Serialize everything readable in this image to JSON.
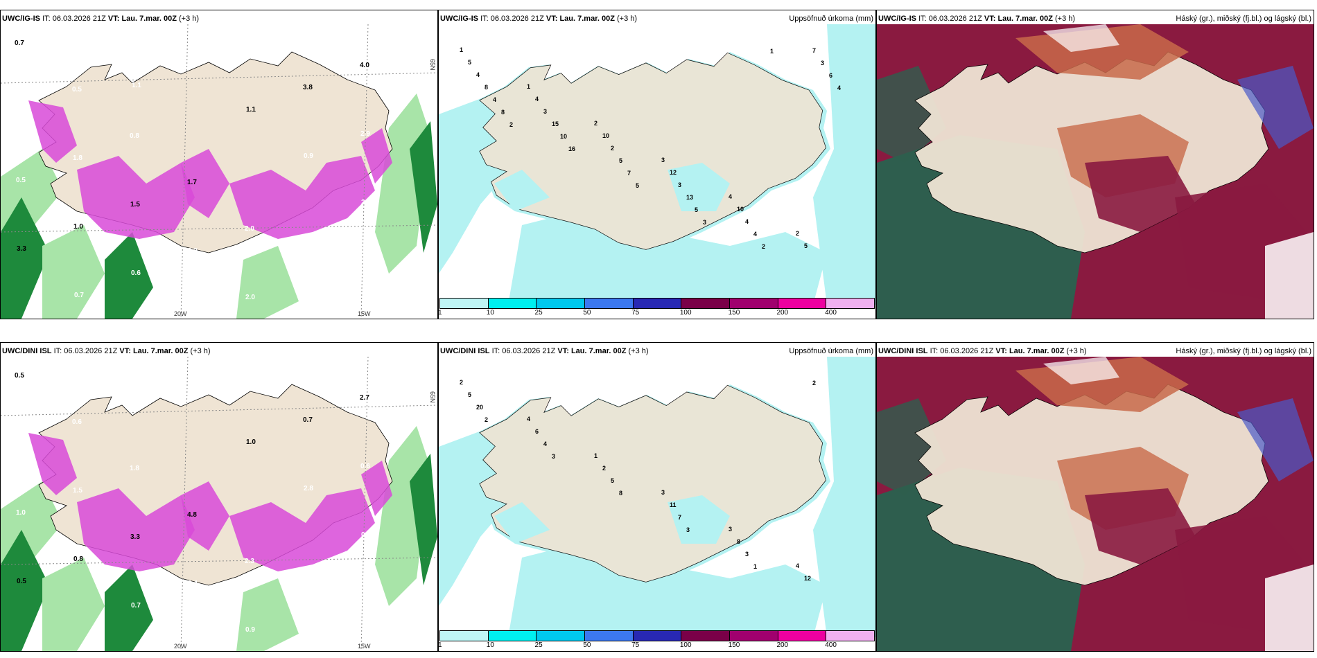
{
  "panels": [
    {
      "model": "UWC/IG-IS",
      "it_label": "IT:",
      "it": "06.03.2026 21Z",
      "vt_label": "VT:",
      "vt": "Lau. 7.mar. 00Z",
      "lead": "(+3 h)",
      "right_title": ""
    },
    {
      "model": "UWC/IG-IS",
      "it_label": "IT:",
      "it": "06.03.2026 21Z",
      "vt_label": "VT:",
      "vt": "Lau. 7.mar. 00Z",
      "lead": "(+3 h)",
      "right_title": "Uppsöfnuð úrkoma (mm)"
    },
    {
      "model": "UWC/IG-IS",
      "it_label": "IT:",
      "it": "06.03.2026 21Z",
      "vt_label": "VT:",
      "vt": "Lau. 7.mar. 00Z",
      "lead": "(+3 h)",
      "right_title": "Háský (gr.), miðský (fj.bl.) og lágský (bl.)"
    },
    {
      "model": "UWC/DINI ISL",
      "it_label": "IT:",
      "it": "06.03.2026 21Z",
      "vt_label": "VT:",
      "vt": "Lau. 7.mar. 00Z",
      "lead": "(+3 h)",
      "right_title": ""
    },
    {
      "model": "UWC/DINI ISL",
      "it_label": "IT:",
      "it": "06.03.2026 21Z",
      "vt_label": "VT:",
      "vt": "Lau. 7.mar. 00Z",
      "lead": "(+3 h)",
      "right_title": "Uppsöfnuð úrkoma (mm)"
    },
    {
      "model": "UWC/DINI ISL",
      "it_label": "IT:",
      "it": "06.03.2026 21Z",
      "vt_label": "VT:",
      "vt": "Lau. 7.mar. 00Z",
      "lead": "(+3 h)",
      "right_title": "Háský (gr.), miðský (fj.bl.) og lágský (bl.)"
    }
  ],
  "colorbar": {
    "labels": [
      "1",
      "10",
      "25",
      "50",
      "75",
      "100",
      "150",
      "200",
      "400"
    ],
    "colors": [
      "#bff6f6",
      "#00f0f0",
      "#00c8ee",
      "#3c78f0",
      "#2828b4",
      "#7a0048",
      "#a0006e",
      "#ee00a0",
      "#f0b0f0"
    ]
  },
  "axis": {
    "lat_label": "65N",
    "lon_a": "20W",
    "lon_b": "15W"
  },
  "precip_top": [
    "1",
    "1",
    "2",
    "3",
    "4",
    "2",
    "5",
    "4",
    "10",
    "12",
    "10",
    "5",
    "4",
    "3",
    "2",
    "3",
    "4",
    "7",
    "8",
    "15",
    "5",
    "13",
    "4",
    "3",
    "4",
    "10",
    "7",
    "5",
    "2",
    "6",
    "8",
    "16",
    "5",
    "3",
    "1",
    "4",
    "2"
  ],
  "precip_bottom": [
    "2",
    "4",
    "1",
    "3",
    "3",
    "4",
    "5",
    "6",
    "2",
    "11",
    "8",
    "12",
    "20",
    "4",
    "5",
    "7",
    "3",
    "2",
    "2",
    "3",
    "8",
    "3",
    "1"
  ],
  "wind_top": [
    "0.7",
    "0.5",
    "0.8",
    "1.7",
    "2.0",
    "3.2",
    "4.0",
    "2.3",
    "1.8",
    "1.5",
    "2.2",
    "2.0",
    "3.8",
    "2.9",
    "0.5",
    "1.0",
    "0.6",
    "0.8",
    "1.1",
    "0.9",
    "2.5",
    "3.3",
    "0.7",
    "1.1"
  ],
  "wind_bottom": [
    "0.5",
    "0.6",
    "1.8",
    "4.8",
    "2.3",
    "3.2",
    "2.7",
    "2.1",
    "1.5",
    "3.3",
    "0.4",
    "0.9",
    "0.7",
    "0.6",
    "1.0",
    "0.8",
    "0.7",
    "0.5",
    "1.0",
    "2.8",
    "0.2",
    "0.5"
  ],
  "colors": {
    "land": "#efe4d4",
    "sea_precip": "#b4f2f2",
    "sea_white": "#ffffff",
    "pink": "#d84ad8",
    "green": "#1e8a3c",
    "lightgreen": "#a8e4a8",
    "cloud_dark": "#2e5e4e",
    "cloud_maroon": "#8a1a40",
    "cloud_orange": "#c86a4a",
    "cloud_blue": "#4a5ac8"
  }
}
